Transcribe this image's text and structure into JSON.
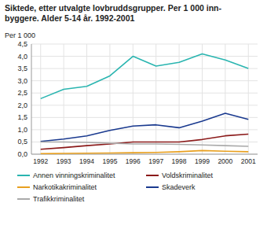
{
  "chart_data": {
    "type": "line",
    "title": "Siktede, etter utvalgte lovbruddsgrupper. Per 1 000 inn-\nbyggere. Alder 5-14 år. 1992-2001",
    "y_label": "Per 1 000",
    "x": [
      1992,
      1993,
      1994,
      1995,
      1996,
      1997,
      1998,
      1999,
      2000,
      2001
    ],
    "series": [
      {
        "name": "Annen vinningskriminalitet",
        "color": "#2ab5b0",
        "values": [
          2.27,
          2.65,
          2.77,
          3.2,
          4.0,
          3.6,
          3.75,
          4.1,
          3.85,
          3.5
        ]
      },
      {
        "name": "Voldskriminalitet",
        "color": "#8b1a1a",
        "values": [
          0.2,
          0.27,
          0.35,
          0.42,
          0.5,
          0.5,
          0.5,
          0.6,
          0.75,
          0.82
        ]
      },
      {
        "name": "Narkotikakriminalitet",
        "color": "#e8a020",
        "values": [
          0.02,
          0.03,
          0.04,
          0.05,
          0.06,
          0.07,
          0.1,
          0.15,
          0.12,
          0.1
        ]
      },
      {
        "name": "Skadeverk",
        "color": "#1a3a8f",
        "values": [
          0.52,
          0.62,
          0.75,
          0.97,
          1.15,
          1.2,
          1.08,
          1.35,
          1.67,
          1.42
        ]
      },
      {
        "name": "Trafikkriminalitet",
        "color": "#aaaaaa",
        "values": [
          0.5,
          0.5,
          0.48,
          0.45,
          0.42,
          0.42,
          0.4,
          0.38,
          0.35,
          0.32
        ]
      }
    ],
    "xlim": [
      1991.6,
      2001.4
    ],
    "xticks": [
      1992,
      1993,
      1994,
      1995,
      1996,
      1997,
      1998,
      1999,
      2000,
      2001
    ],
    "ylim": [
      0.0,
      4.5
    ],
    "yticks": [
      {
        "value": 0.0,
        "label": "0,0"
      },
      {
        "value": 0.5,
        "label": "0,5"
      },
      {
        "value": 1.0,
        "label": "1,0"
      },
      {
        "value": 1.5,
        "label": "1,5"
      },
      {
        "value": 2.0,
        "label": "2,0"
      },
      {
        "value": 2.5,
        "label": "2,5"
      },
      {
        "value": 3.0,
        "label": "3,0"
      },
      {
        "value": 3.5,
        "label": "3,5"
      },
      {
        "value": 4.0,
        "label": "4,0"
      },
      {
        "value": 4.5,
        "label": "4,5"
      }
    ],
    "grid": true,
    "legend": "bottom"
  }
}
